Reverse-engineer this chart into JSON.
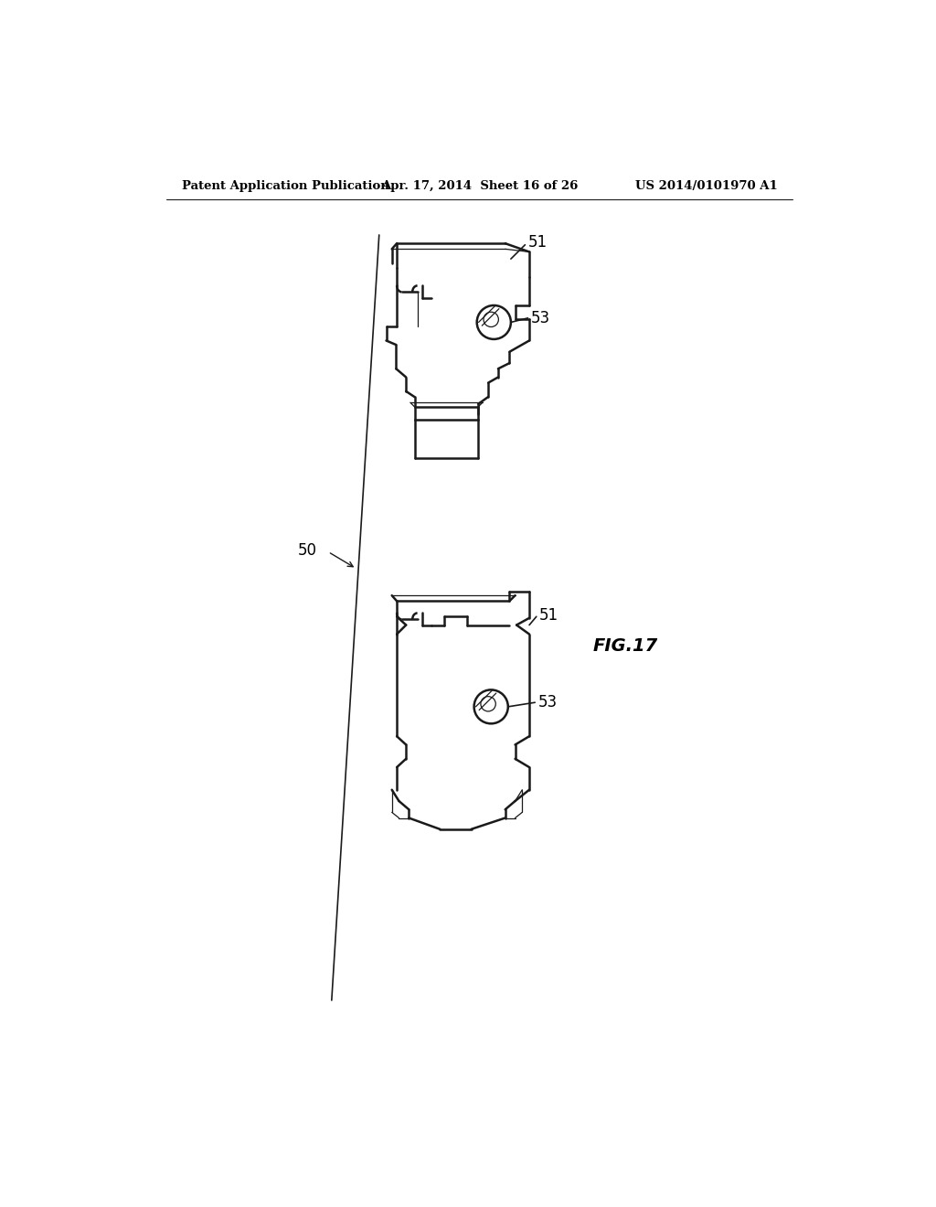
{
  "bg_color": "#ffffff",
  "line_color": "#1a1a1a",
  "header_left": "Patent Application Publication",
  "header_center": "Apr. 17, 2014  Sheet 16 of 26",
  "header_right": "US 2014/0101970 A1",
  "fig_label": "FIG.17"
}
